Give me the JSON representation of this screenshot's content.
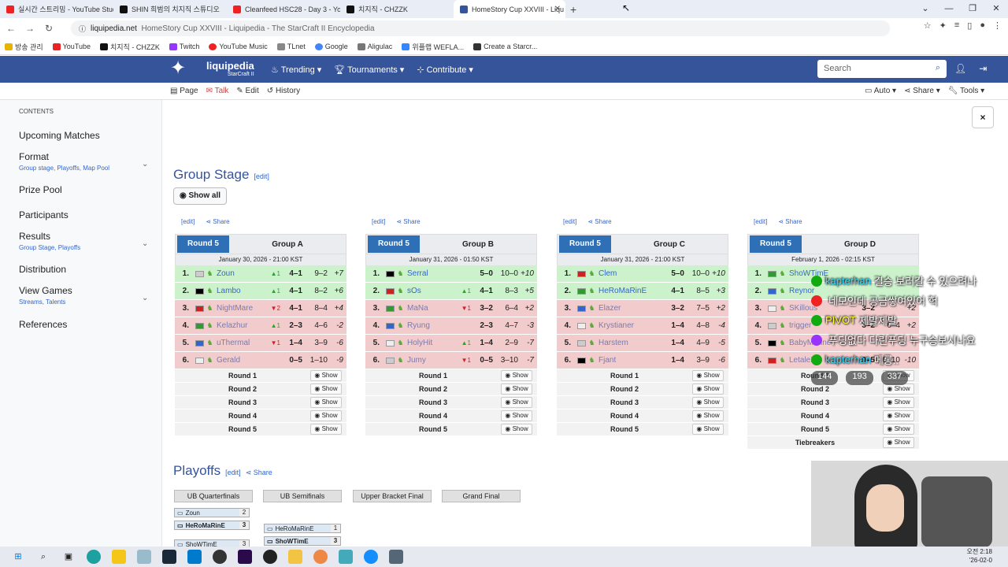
{
  "browser": {
    "tabs": [
      {
        "title": "실시간 스트리밍 - YouTube Studio",
        "color": "#e22"
      },
      {
        "title": "SHIN 희범의 치지직 스튜디오",
        "color": "#111"
      },
      {
        "title": "Cleanfeed HSC28 - Day 3 - YouT",
        "color": "#e22"
      },
      {
        "title": "치지직 - CHZZK",
        "color": "#111"
      },
      {
        "title": "HomeStory Cup XXVIII - Liqu",
        "color": "#36549a",
        "active": true
      }
    ],
    "url_domain": "liquipedia.net",
    "url_title": "HomeStory Cup XXVIII - Liquipedia - The StarCraft II Encyclopedia",
    "bookmarks": [
      "방송 관리",
      "YouTube",
      "치지직 - CHZZK",
      "Twitch",
      "YouTube Music",
      "TLnet",
      "Google",
      "Aligulac",
      "위플랩 WEFLA...",
      "Create a Starcr..."
    ]
  },
  "site": {
    "name": "liquipedia",
    "sub": "StarCraft II",
    "nav": [
      "Trending",
      "Tournaments",
      "Contribute"
    ],
    "search_placeholder": "Search",
    "subnav_left": [
      "Page",
      "Talk",
      "Edit",
      "History"
    ],
    "subnav_right": [
      "Auto",
      "Share",
      "Tools"
    ]
  },
  "sidebar": {
    "heading": "CONTENTS",
    "items": [
      {
        "label": "Upcoming Matches",
        "sub": ""
      },
      {
        "label": "Format",
        "sub": "Group stage, Playoffs, Map Pool"
      },
      {
        "label": "Prize Pool",
        "sub": ""
      },
      {
        "label": "Participants",
        "sub": ""
      },
      {
        "label": "Results",
        "sub": "Group Stage, Playoffs"
      },
      {
        "label": "Distribution",
        "sub": ""
      },
      {
        "label": "View Games",
        "sub": "Streams, Talents"
      },
      {
        "label": "References",
        "sub": ""
      }
    ]
  },
  "close_label": "×",
  "group_stage": {
    "title": "Group Stage",
    "edit": "[edit]",
    "show_all": "Show all"
  },
  "groups": [
    {
      "round_tab": "Round 5",
      "name": "Group A",
      "edit": "[edit]",
      "share": "Share",
      "date": "January 30, 2026 - 21:00 KST",
      "rows": [
        {
          "pos": "1.",
          "name": "Zoun",
          "chg": "▲1",
          "match": "4–1",
          "games": "9–2",
          "diff": "+7",
          "status": "up"
        },
        {
          "pos": "2.",
          "name": "Lambo",
          "chg": "▲1",
          "match": "4–1",
          "games": "8–2",
          "diff": "+6",
          "status": "up"
        },
        {
          "pos": "3.",
          "name": "NightMare",
          "chg": "▼2",
          "match": "4–1",
          "games": "8–4",
          "diff": "+4",
          "status": "down"
        },
        {
          "pos": "4.",
          "name": "Kelazhur",
          "chg": "▲1",
          "match": "2–3",
          "games": "4–6",
          "diff": "-2",
          "status": "down"
        },
        {
          "pos": "5.",
          "name": "uThermal",
          "chg": "▼1",
          "match": "1–4",
          "games": "3–9",
          "diff": "-6",
          "status": "down"
        },
        {
          "pos": "6.",
          "name": "Gerald",
          "chg": "",
          "match": "0–5",
          "games": "1–10",
          "diff": "-9",
          "status": "down"
        }
      ],
      "rounds": [
        "Round 1",
        "Round 2",
        "Round 3",
        "Round 4",
        "Round 5"
      ]
    },
    {
      "round_tab": "Round 5",
      "name": "Group B",
      "edit": "[edit]",
      "share": "Share",
      "date": "January 31, 2026 - 01:50 KST",
      "rows": [
        {
          "pos": "1.",
          "name": "Serral",
          "chg": "",
          "match": "5–0",
          "games": "10–0",
          "diff": "+10",
          "status": "up"
        },
        {
          "pos": "2.",
          "name": "sOs",
          "chg": "▲1",
          "match": "4–1",
          "games": "8–3",
          "diff": "+5",
          "status": "up"
        },
        {
          "pos": "3.",
          "name": "MaNa",
          "chg": "▼1",
          "match": "3–2",
          "games": "6–4",
          "diff": "+2",
          "status": "down"
        },
        {
          "pos": "4.",
          "name": "Ryung",
          "chg": "",
          "match": "2–3",
          "games": "4–7",
          "diff": "-3",
          "status": "down"
        },
        {
          "pos": "5.",
          "name": "HolyHit",
          "chg": "▲1",
          "match": "1–4",
          "games": "2–9",
          "diff": "-7",
          "status": "down"
        },
        {
          "pos": "6.",
          "name": "Jumy",
          "chg": "▼1",
          "match": "0–5",
          "games": "3–10",
          "diff": "-7",
          "status": "down"
        }
      ],
      "rounds": [
        "Round 1",
        "Round 2",
        "Round 3",
        "Round 4",
        "Round 5"
      ]
    },
    {
      "round_tab": "Round 5",
      "name": "Group C",
      "edit": "[edit]",
      "share": "Share",
      "date": "January 31, 2026 - 21:00 KST",
      "rows": [
        {
          "pos": "1.",
          "name": "Clem",
          "chg": "",
          "match": "5–0",
          "games": "10–0",
          "diff": "+10",
          "status": "up"
        },
        {
          "pos": "2.",
          "name": "HeRoMaRinE",
          "chg": "",
          "match": "4–1",
          "games": "8–5",
          "diff": "+3",
          "status": "up"
        },
        {
          "pos": "3.",
          "name": "Elazer",
          "chg": "",
          "match": "3–2",
          "games": "7–5",
          "diff": "+2",
          "status": "down"
        },
        {
          "pos": "4.",
          "name": "Krystianer",
          "chg": "",
          "match": "1–4",
          "games": "4–8",
          "diff": "-4",
          "status": "down"
        },
        {
          "pos": "5.",
          "name": "Harstem",
          "chg": "",
          "match": "1–4",
          "games": "4–9",
          "diff": "-5",
          "status": "down"
        },
        {
          "pos": "6.",
          "name": "Fjant",
          "chg": "",
          "match": "1–4",
          "games": "3–9",
          "diff": "-6",
          "status": "down"
        }
      ],
      "rounds": [
        "Round 1",
        "Round 2",
        "Round 3",
        "Round 4",
        "Round 5"
      ]
    },
    {
      "round_tab": "Round 5",
      "name": "Group D",
      "edit": "[edit]",
      "share": "Share",
      "date": "February 1, 2026 - 02:15 KST",
      "rows": [
        {
          "pos": "1.",
          "name": "ShoWTimE",
          "chg": "",
          "match": "",
          "games": "",
          "diff": "",
          "status": "up"
        },
        {
          "pos": "2.",
          "name": "Reynor",
          "chg": "",
          "match": "",
          "games": "",
          "diff": "",
          "status": "up"
        },
        {
          "pos": "3.",
          "name": "SKillous",
          "chg": "",
          "match": "3–2",
          "games": "",
          "diff": "+2",
          "status": "down"
        },
        {
          "pos": "4.",
          "name": "trigger",
          "chg": "",
          "match": "3–2",
          "games": "6–4",
          "diff": "+2",
          "status": "down"
        },
        {
          "pos": "5.",
          "name": "BabyMarine",
          "chg": "",
          "match": "",
          "games": "",
          "diff": "",
          "status": "down"
        },
        {
          "pos": "6.",
          "name": "LetaleX",
          "chg": "",
          "match": "0–5",
          "games": "0–10",
          "diff": "-10",
          "status": "down"
        }
      ],
      "rounds": [
        "Round 1",
        "Round 2",
        "Round 3",
        "Round 4",
        "Round 5",
        "Tiebreakers"
      ]
    }
  ],
  "show_label": "Show",
  "playoffs": {
    "title": "Playoffs",
    "edit": "[edit]",
    "share": "Share",
    "tabs": [
      "UB Quarterfinals",
      "UB Semifinals",
      "Upper Bracket Final",
      "Grand Final"
    ],
    "matches": [
      {
        "p1": "Zoun",
        "s1": "2",
        "p2": "HeRoMaRinE",
        "s2": "3"
      },
      {
        "p1": "HeRoMaRinE",
        "s1": "1",
        "p2": "ShoWTimE",
        "s2": "3"
      },
      {
        "p1": "ShoWTimE",
        "s1": "3",
        "p2": "",
        "s2": ""
      }
    ]
  },
  "chat": [
    {
      "user": "kapterhan",
      "msg": "결승 보러갈 수 있으려나",
      "icon": "#1a1"
    },
    {
      "user": "",
      "msg": "네모인데 공금쌓여있어 헉",
      "icon": "#e22"
    },
    {
      "user": "PIVOT",
      "msg": "제발제발",
      "icon": "#1a1"
    },
    {
      "user": "",
      "msg": "푸딩없다 다린푸딩 누구승보시나요",
      "icon": "#93f"
    },
    {
      "user": "kapterhan",
      "msg": "메롱..",
      "icon": "#1a1"
    }
  ],
  "viewers": {
    "chzzk": "144",
    "youtube": "193",
    "other": "337"
  },
  "clock": {
    "time": "오전 2:18",
    "date": "'26-02-0"
  }
}
